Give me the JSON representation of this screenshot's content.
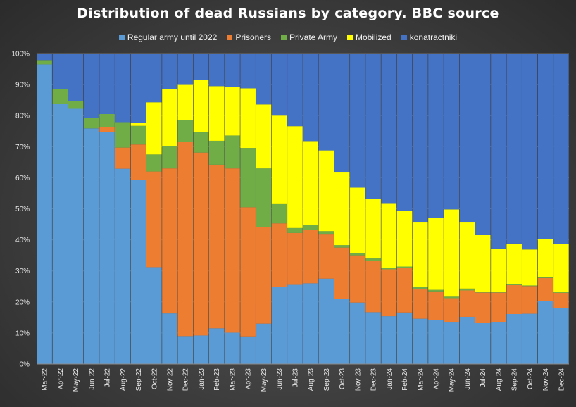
{
  "chart_data": {
    "type": "bar",
    "stacked": true,
    "percent": true,
    "title": "Distribution of dead Russians by category. BBC source",
    "xlabel": "",
    "ylabel": "",
    "ylim": [
      0,
      100
    ],
    "y_ticks": [
      "0%",
      "10%",
      "20%",
      "30%",
      "40%",
      "50%",
      "60%",
      "70%",
      "80%",
      "90%",
      "100%"
    ],
    "grid": true,
    "legend_position": "top",
    "categories": [
      "Mar-22",
      "Apr-22",
      "May-22",
      "Jun-22",
      "Jul-22",
      "Aug-22",
      "Sep-22",
      "Oct-22",
      "Nov-22",
      "Dec-22",
      "Jan-23",
      "Feb-23",
      "Mar-23",
      "Apr-23",
      "May-23",
      "Jun-23",
      "Jul-23",
      "Aug-23",
      "Sep-23",
      "Oct-23",
      "Nov-23",
      "Dec-23",
      "Jan-24",
      "Feb-24",
      "Mar-24",
      "Apr-24",
      "May-24",
      "Jun-24",
      "Jul-24",
      "Aug-24",
      "Sep-24",
      "Oct-24",
      "Nov-24",
      "Dec-24"
    ],
    "series": [
      {
        "name": "Regular army until 2022",
        "color": "#5b9bd5",
        "values": [
          96.5,
          83.8,
          82.2,
          75.9,
          74.7,
          62.9,
          59.4,
          31.2,
          16.3,
          9.0,
          9.2,
          11.5,
          10.1,
          8.9,
          13.0,
          24.8,
          25.5,
          26.0,
          27.5,
          20.9,
          19.8,
          16.7,
          15.4,
          16.6,
          14.6,
          14.2,
          13.6,
          15.2,
          13.2,
          13.6,
          16.1,
          16.2,
          20.2,
          18.1
        ]
      },
      {
        "name": "Prisoners",
        "color": "#ed7d31",
        "values": [
          0,
          0,
          0,
          0,
          1.7,
          6.8,
          11.3,
          30.8,
          46.7,
          62.6,
          58.9,
          52.7,
          52.9,
          41.6,
          31.1,
          20.5,
          16.7,
          17.3,
          14.2,
          16.6,
          15.2,
          16.6,
          15.1,
          14.4,
          9.6,
          9.2,
          7.6,
          8.5,
          9.8,
          9.4,
          9.3,
          8.9,
          7.5,
          4.8
        ]
      },
      {
        "name": "Private Army",
        "color": "#70ad47",
        "values": [
          1.4,
          4.8,
          2.5,
          3.3,
          4.1,
          8.2,
          6.0,
          5.5,
          7.1,
          7.0,
          6.5,
          7.7,
          10.6,
          19.1,
          18.9,
          6.2,
          1.6,
          1.4,
          1.1,
          0.8,
          0.7,
          0.7,
          0.4,
          0.4,
          0.6,
          0.5,
          0.5,
          0.6,
          0.3,
          0.3,
          0.3,
          0.2,
          0.2,
          0.2
        ]
      },
      {
        "name": "Mobilized",
        "color": "#ffff00",
        "values": [
          0,
          0,
          0,
          0,
          0,
          0,
          0.9,
          16.8,
          18.5,
          11.3,
          16.9,
          17.6,
          15.7,
          19.2,
          20.6,
          28.5,
          32.8,
          27.1,
          26.0,
          23.6,
          21.1,
          19.2,
          20.7,
          17.9,
          21.0,
          23.2,
          28.1,
          21.5,
          18.2,
          13.9,
          13.1,
          11.6,
          12.4,
          15.6
        ]
      },
      {
        "name": "konatractniki",
        "color": "#4472c4",
        "values": [
          2.1,
          11.4,
          15.3,
          20.8,
          19.5,
          22.1,
          22.4,
          15.7,
          11.4,
          10.1,
          8.5,
          10.5,
          10.7,
          11.2,
          16.4,
          20.0,
          23.4,
          28.2,
          31.2,
          38.1,
          43.2,
          46.8,
          48.4,
          50.7,
          54.2,
          52.9,
          50.2,
          54.2,
          58.5,
          62.8,
          61.2,
          63.1,
          59.7,
          61.3
        ]
      }
    ]
  }
}
